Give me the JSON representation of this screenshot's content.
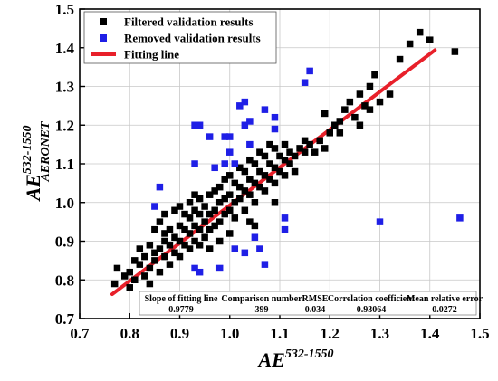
{
  "chart_data": {
    "type": "scatter",
    "xlabel": {
      "base": "AE",
      "sup": "532-1550",
      "sub": ""
    },
    "ylabel": {
      "base": "AE",
      "sup": "532-1550",
      "sub": "AERONET"
    },
    "xlim": [
      0.7,
      1.5
    ],
    "ylim": [
      0.7,
      1.5
    ],
    "xticks": [
      "0.7",
      "0.8",
      "0.9",
      "1.0",
      "1.1",
      "1.2",
      "1.3",
      "1.4",
      "1.5"
    ],
    "yticks": [
      "0.7",
      "0.8",
      "0.9",
      "1.0",
      "1.1",
      "1.2",
      "1.3",
      "1.4",
      "1.5"
    ],
    "grid": true,
    "legend_position": "top-left",
    "colors": {
      "filtered": "#000000",
      "removed": "#1f1fe6",
      "fit": "#e8202a"
    },
    "legend": [
      {
        "key": "filtered",
        "label": "Filtered validation results",
        "kind": "square"
      },
      {
        "key": "removed",
        "label": "Removed validation results",
        "kind": "square"
      },
      {
        "key": "fit",
        "label": "Fitting line",
        "kind": "line"
      }
    ],
    "fit_line": {
      "slope": 0.9779,
      "x_range": [
        0.765,
        1.41
      ],
      "start_y": 0.763
    },
    "stats_table": {
      "headers": [
        "Slope of fitting line",
        "Comparison number",
        "RMSE",
        "Correlation coefficient",
        "Mean relative error"
      ],
      "values": [
        "0.9779",
        "399",
        "0.034",
        "0.93064",
        "0.0272"
      ]
    },
    "series": [
      {
        "key": "filtered",
        "name": "Filtered validation results",
        "points": [
          [
            0.77,
            0.79
          ],
          [
            0.775,
            0.83
          ],
          [
            0.79,
            0.81
          ],
          [
            0.8,
            0.82
          ],
          [
            0.81,
            0.8
          ],
          [
            0.81,
            0.85
          ],
          [
            0.82,
            0.84
          ],
          [
            0.82,
            0.88
          ],
          [
            0.83,
            0.81
          ],
          [
            0.83,
            0.86
          ],
          [
            0.84,
            0.83
          ],
          [
            0.84,
            0.89
          ],
          [
            0.85,
            0.85
          ],
          [
            0.85,
            0.87
          ],
          [
            0.85,
            0.93
          ],
          [
            0.86,
            0.82
          ],
          [
            0.86,
            0.88
          ],
          [
            0.86,
            0.95
          ],
          [
            0.87,
            0.86
          ],
          [
            0.87,
            0.9
          ],
          [
            0.87,
            0.97
          ],
          [
            0.88,
            0.84
          ],
          [
            0.88,
            0.89
          ],
          [
            0.88,
            0.93
          ],
          [
            0.89,
            0.87
          ],
          [
            0.89,
            0.91
          ],
          [
            0.89,
            0.98
          ],
          [
            0.9,
            0.86
          ],
          [
            0.9,
            0.9
          ],
          [
            0.9,
            0.94
          ],
          [
            0.9,
            0.99
          ],
          [
            0.91,
            0.89
          ],
          [
            0.91,
            0.93
          ],
          [
            0.91,
            0.97
          ],
          [
            0.92,
            0.88
          ],
          [
            0.92,
            0.92
          ],
          [
            0.92,
            0.96
          ],
          [
            0.92,
            1.0
          ],
          [
            0.93,
            0.9
          ],
          [
            0.93,
            0.94
          ],
          [
            0.93,
            0.98
          ],
          [
            0.94,
            0.89
          ],
          [
            0.94,
            0.93
          ],
          [
            0.94,
            0.97
          ],
          [
            0.94,
            1.01
          ],
          [
            0.95,
            0.91
          ],
          [
            0.95,
            0.95
          ],
          [
            0.95,
            0.99
          ],
          [
            0.96,
            0.93
          ],
          [
            0.96,
            0.97
          ],
          [
            0.96,
            1.02
          ],
          [
            0.97,
            0.94
          ],
          [
            0.97,
            0.98
          ],
          [
            0.97,
            1.03
          ],
          [
            0.98,
            0.95
          ],
          [
            0.98,
            1.0
          ],
          [
            0.98,
            1.04
          ],
          [
            0.99,
            0.97
          ],
          [
            0.99,
            1.01
          ],
          [
            0.99,
            1.06
          ],
          [
            1.0,
            0.98
          ],
          [
            1.0,
            1.02
          ],
          [
            1.0,
            1.07
          ],
          [
            1.01,
            0.96
          ],
          [
            1.01,
            1.0
          ],
          [
            1.01,
            1.05
          ],
          [
            1.02,
            1.01
          ],
          [
            1.02,
            1.04
          ],
          [
            1.02,
            1.09
          ],
          [
            1.03,
            0.98
          ],
          [
            1.03,
            1.03
          ],
          [
            1.03,
            1.08
          ],
          [
            1.04,
            1.02
          ],
          [
            1.04,
            1.06
          ],
          [
            1.04,
            1.11
          ],
          [
            1.05,
            1.0
          ],
          [
            1.05,
            1.05
          ],
          [
            1.05,
            1.1
          ],
          [
            1.06,
            1.04
          ],
          [
            1.06,
            1.08
          ],
          [
            1.06,
            1.13
          ],
          [
            1.07,
            1.03
          ],
          [
            1.07,
            1.07
          ],
          [
            1.07,
            1.12
          ],
          [
            1.08,
            1.06
          ],
          [
            1.08,
            1.1
          ],
          [
            1.08,
            1.15
          ],
          [
            1.09,
            1.05
          ],
          [
            1.09,
            1.09
          ],
          [
            1.09,
            1.14
          ],
          [
            1.1,
            1.08
          ],
          [
            1.1,
            1.12
          ],
          [
            1.11,
            1.07
          ],
          [
            1.11,
            1.11
          ],
          [
            1.12,
            1.1
          ],
          [
            1.12,
            1.13
          ],
          [
            1.13,
            1.12
          ],
          [
            1.14,
            1.14
          ],
          [
            1.15,
            1.13
          ],
          [
            1.15,
            1.16
          ],
          [
            1.16,
            1.15
          ],
          [
            1.17,
            1.13
          ],
          [
            1.18,
            1.16
          ],
          [
            1.19,
            1.14
          ],
          [
            1.2,
            1.18
          ],
          [
            1.21,
            1.2
          ],
          [
            1.22,
            1.21
          ],
          [
            1.23,
            1.24
          ],
          [
            1.24,
            1.26
          ],
          [
            1.25,
            1.22
          ],
          [
            1.26,
            1.28
          ],
          [
            1.27,
            1.25
          ],
          [
            1.28,
            1.3
          ],
          [
            1.28,
            1.24
          ],
          [
            1.29,
            1.33
          ],
          [
            1.3,
            1.26
          ],
          [
            1.32,
            1.28
          ],
          [
            1.34,
            1.37
          ],
          [
            1.36,
            1.41
          ],
          [
            1.38,
            1.44
          ],
          [
            1.4,
            1.42
          ],
          [
            1.45,
            1.39
          ],
          [
            1.22,
            1.18
          ],
          [
            1.19,
            1.23
          ],
          [
            1.26,
            1.2
          ],
          [
            1.13,
            1.08
          ],
          [
            1.11,
            1.15
          ],
          [
            1.0,
            0.92
          ],
          [
            0.98,
            0.9
          ],
          [
            1.05,
            0.94
          ],
          [
            0.96,
            0.88
          ],
          [
            0.84,
            0.79
          ],
          [
            0.8,
            0.78
          ],
          [
            0.87,
            0.92
          ],
          [
            0.93,
            1.02
          ],
          [
            1.04,
            0.95
          ],
          [
            1.09,
            1.0
          ]
        ]
      },
      {
        "key": "removed",
        "name": "Removed validation results",
        "points": [
          [
            0.85,
            0.99
          ],
          [
            0.86,
            1.04
          ],
          [
            0.93,
            1.2
          ],
          [
            0.94,
            1.2
          ],
          [
            0.93,
            1.1
          ],
          [
            0.93,
            0.83
          ],
          [
            0.94,
            0.82
          ],
          [
            0.96,
            1.17
          ],
          [
            0.97,
            1.09
          ],
          [
            0.98,
            0.83
          ],
          [
            0.99,
            1.17
          ],
          [
            0.99,
            1.1
          ],
          [
            1.0,
            1.17
          ],
          [
            1.0,
            1.13
          ],
          [
            1.01,
            1.1
          ],
          [
            1.01,
            0.88
          ],
          [
            1.02,
            1.25
          ],
          [
            1.03,
            1.26
          ],
          [
            1.03,
            1.2
          ],
          [
            1.03,
            0.87
          ],
          [
            1.04,
            1.21
          ],
          [
            1.04,
            1.15
          ],
          [
            1.05,
            0.91
          ],
          [
            1.06,
            0.88
          ],
          [
            1.07,
            1.24
          ],
          [
            1.07,
            0.84
          ],
          [
            1.09,
            1.22
          ],
          [
            1.09,
            1.19
          ],
          [
            1.11,
            0.96
          ],
          [
            1.11,
            0.93
          ],
          [
            1.15,
            1.31
          ],
          [
            1.16,
            1.34
          ],
          [
            1.3,
            0.95
          ],
          [
            1.46,
            0.96
          ]
        ]
      }
    ]
  }
}
